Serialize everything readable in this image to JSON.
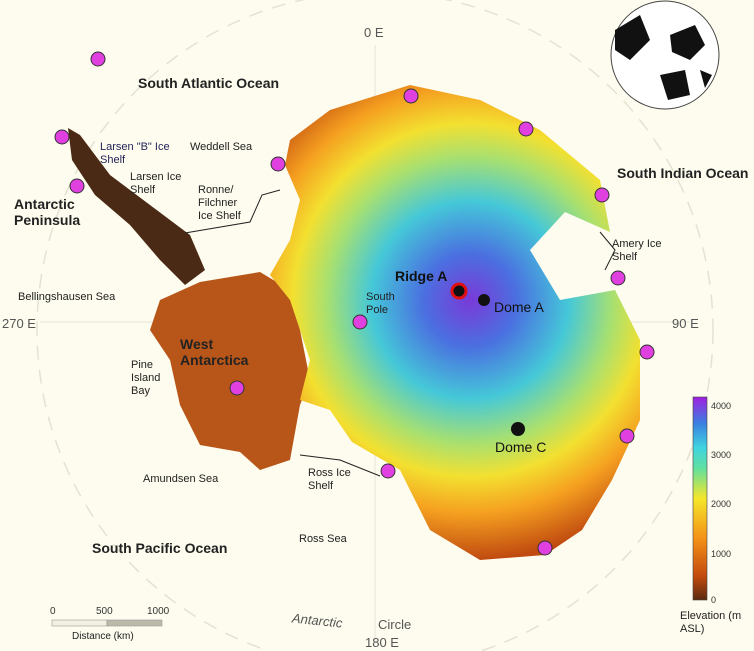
{
  "oceans": {
    "atlantic": "South Atlantic Ocean",
    "indian": "South Indian Ocean",
    "pacific": "South Pacific Ocean"
  },
  "regions": {
    "peninsula": "Antarctic Peninsula",
    "west": "West Antarctica"
  },
  "labels": {
    "larsen_b": "Larsen \"B\" Ice Shelf",
    "larsen": "Larsen Ice Shelf",
    "weddell": "Weddell Sea",
    "ronne": "Ronne/ Filchner Ice Shelf",
    "bellingshausen": "Bellingshausen Sea",
    "amery": "Amery Ice Shelf",
    "south_pole": "South Pole",
    "pine_island": "Pine Island Bay",
    "amundsen": "Amundsen Sea",
    "ross_shelf": "Ross Ice Shelf",
    "ross_sea": "Ross Sea"
  },
  "features": {
    "ridge_a": "Ridge A",
    "dome_a": "Dome A",
    "dome_c": "Dome C"
  },
  "meridians": {
    "top": "0 E",
    "right": "90 E",
    "bottom": "180 E",
    "left": "270 E"
  },
  "circle_label": {
    "a": "Antarctic",
    "b": "Circle"
  },
  "scale_bar": {
    "ticks": [
      "0",
      "500",
      "1000"
    ],
    "label": "Distance (km)"
  },
  "legend": {
    "title": "Elevation (m ASL)",
    "ticks": [
      "4000",
      "3000",
      "2000",
      "1000",
      "0"
    ],
    "range": [
      0,
      4000
    ],
    "colors": [
      "#5a2a10",
      "#e8600a",
      "#f7a020",
      "#f5e62a",
      "#48d4c8",
      "#3a9ee0",
      "#6a40d8",
      "#a020e0"
    ]
  },
  "marker_colors": {
    "site": "#e040e0",
    "ridge": "#e01010",
    "dome": "#111111"
  }
}
